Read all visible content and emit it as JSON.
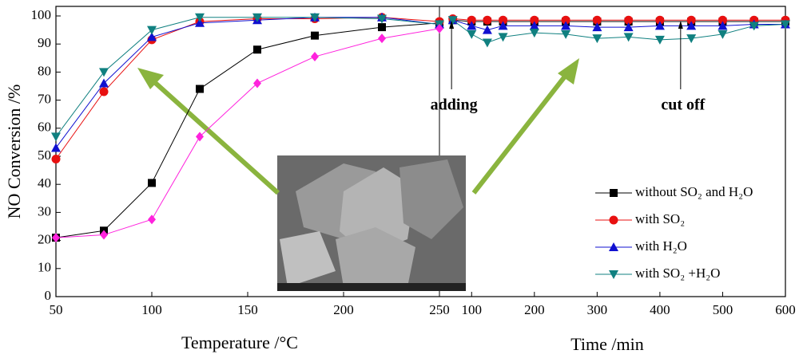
{
  "chart_data": [
    {
      "type": "line",
      "xlabel": "Temperature /°C",
      "ylabel": "NO Conversion /%",
      "x": [
        50,
        75,
        100,
        125,
        155,
        185,
        220,
        250
      ],
      "xlim": [
        50,
        250
      ],
      "xticks": [
        50,
        100,
        150,
        200,
        250
      ],
      "ylim": [
        0,
        100
      ],
      "yticks": [
        0,
        10,
        20,
        30,
        40,
        50,
        60,
        70,
        80,
        90,
        100
      ],
      "series": [
        {
          "color": "#000000",
          "marker": "square",
          "values": [
            21,
            23.5,
            40.5,
            74,
            88,
            93,
            96,
            97.5
          ]
        },
        {
          "color": "#e81010",
          "marker": "circle",
          "values": [
            49,
            73,
            91.5,
            98,
            99,
            99,
            99.5,
            98
          ]
        },
        {
          "color": "#1010d0",
          "marker": "triangle",
          "values": [
            53,
            76,
            92.5,
            97.5,
            98.5,
            99.5,
            99.5,
            97
          ]
        },
        {
          "color": "#108080",
          "marker": "triangle-down",
          "values": [
            57,
            80,
            95,
            99.5,
            99.5,
            99.5,
            99,
            97
          ]
        },
        {
          "color": "#ff22dd",
          "marker": "diamond",
          "values": [
            21,
            22,
            27.5,
            57,
            76,
            85.5,
            92,
            95.5
          ]
        }
      ]
    },
    {
      "type": "line",
      "xlabel": "Time /min",
      "x": [
        70,
        100,
        125,
        150,
        200,
        250,
        300,
        350,
        400,
        450,
        500,
        550,
        600
      ],
      "xlim": [
        50,
        600
      ],
      "xticks": [
        100,
        200,
        300,
        400,
        500,
        600
      ],
      "ylim": [
        0,
        100
      ],
      "legend": "lower right",
      "annotations": [
        {
          "text": "adding",
          "x": 68
        },
        {
          "text": "cut off",
          "x": 433
        }
      ],
      "series": [
        {
          "name": "without SO₂ and H₂O",
          "color": "#000000",
          "marker": "square",
          "values": [
            98.5,
            98,
            98,
            98,
            98,
            98,
            98,
            98,
            98,
            98,
            98,
            98,
            98
          ]
        },
        {
          "name": "with SO₂",
          "color": "#e81010",
          "marker": "circle",
          "values": [
            99,
            98.5,
            98.5,
            98.5,
            98.5,
            98.5,
            98.5,
            98.5,
            98.5,
            98.5,
            98.5,
            98.5,
            98.5
          ]
        },
        {
          "name": "with H₂O",
          "color": "#1010d0",
          "marker": "triangle",
          "values": [
            98.5,
            96.5,
            95,
            96.5,
            96.5,
            96.5,
            96,
            96,
            96.5,
            96.5,
            96.5,
            97,
            97
          ]
        },
        {
          "name": "with SO₂ +H₂O",
          "color": "#108080",
          "marker": "triangle-down",
          "values": [
            98.5,
            93.5,
            90.5,
            92.5,
            94,
            93.5,
            92,
            92.5,
            91.5,
            92,
            93.5,
            96.5,
            97
          ]
        }
      ]
    }
  ]
}
